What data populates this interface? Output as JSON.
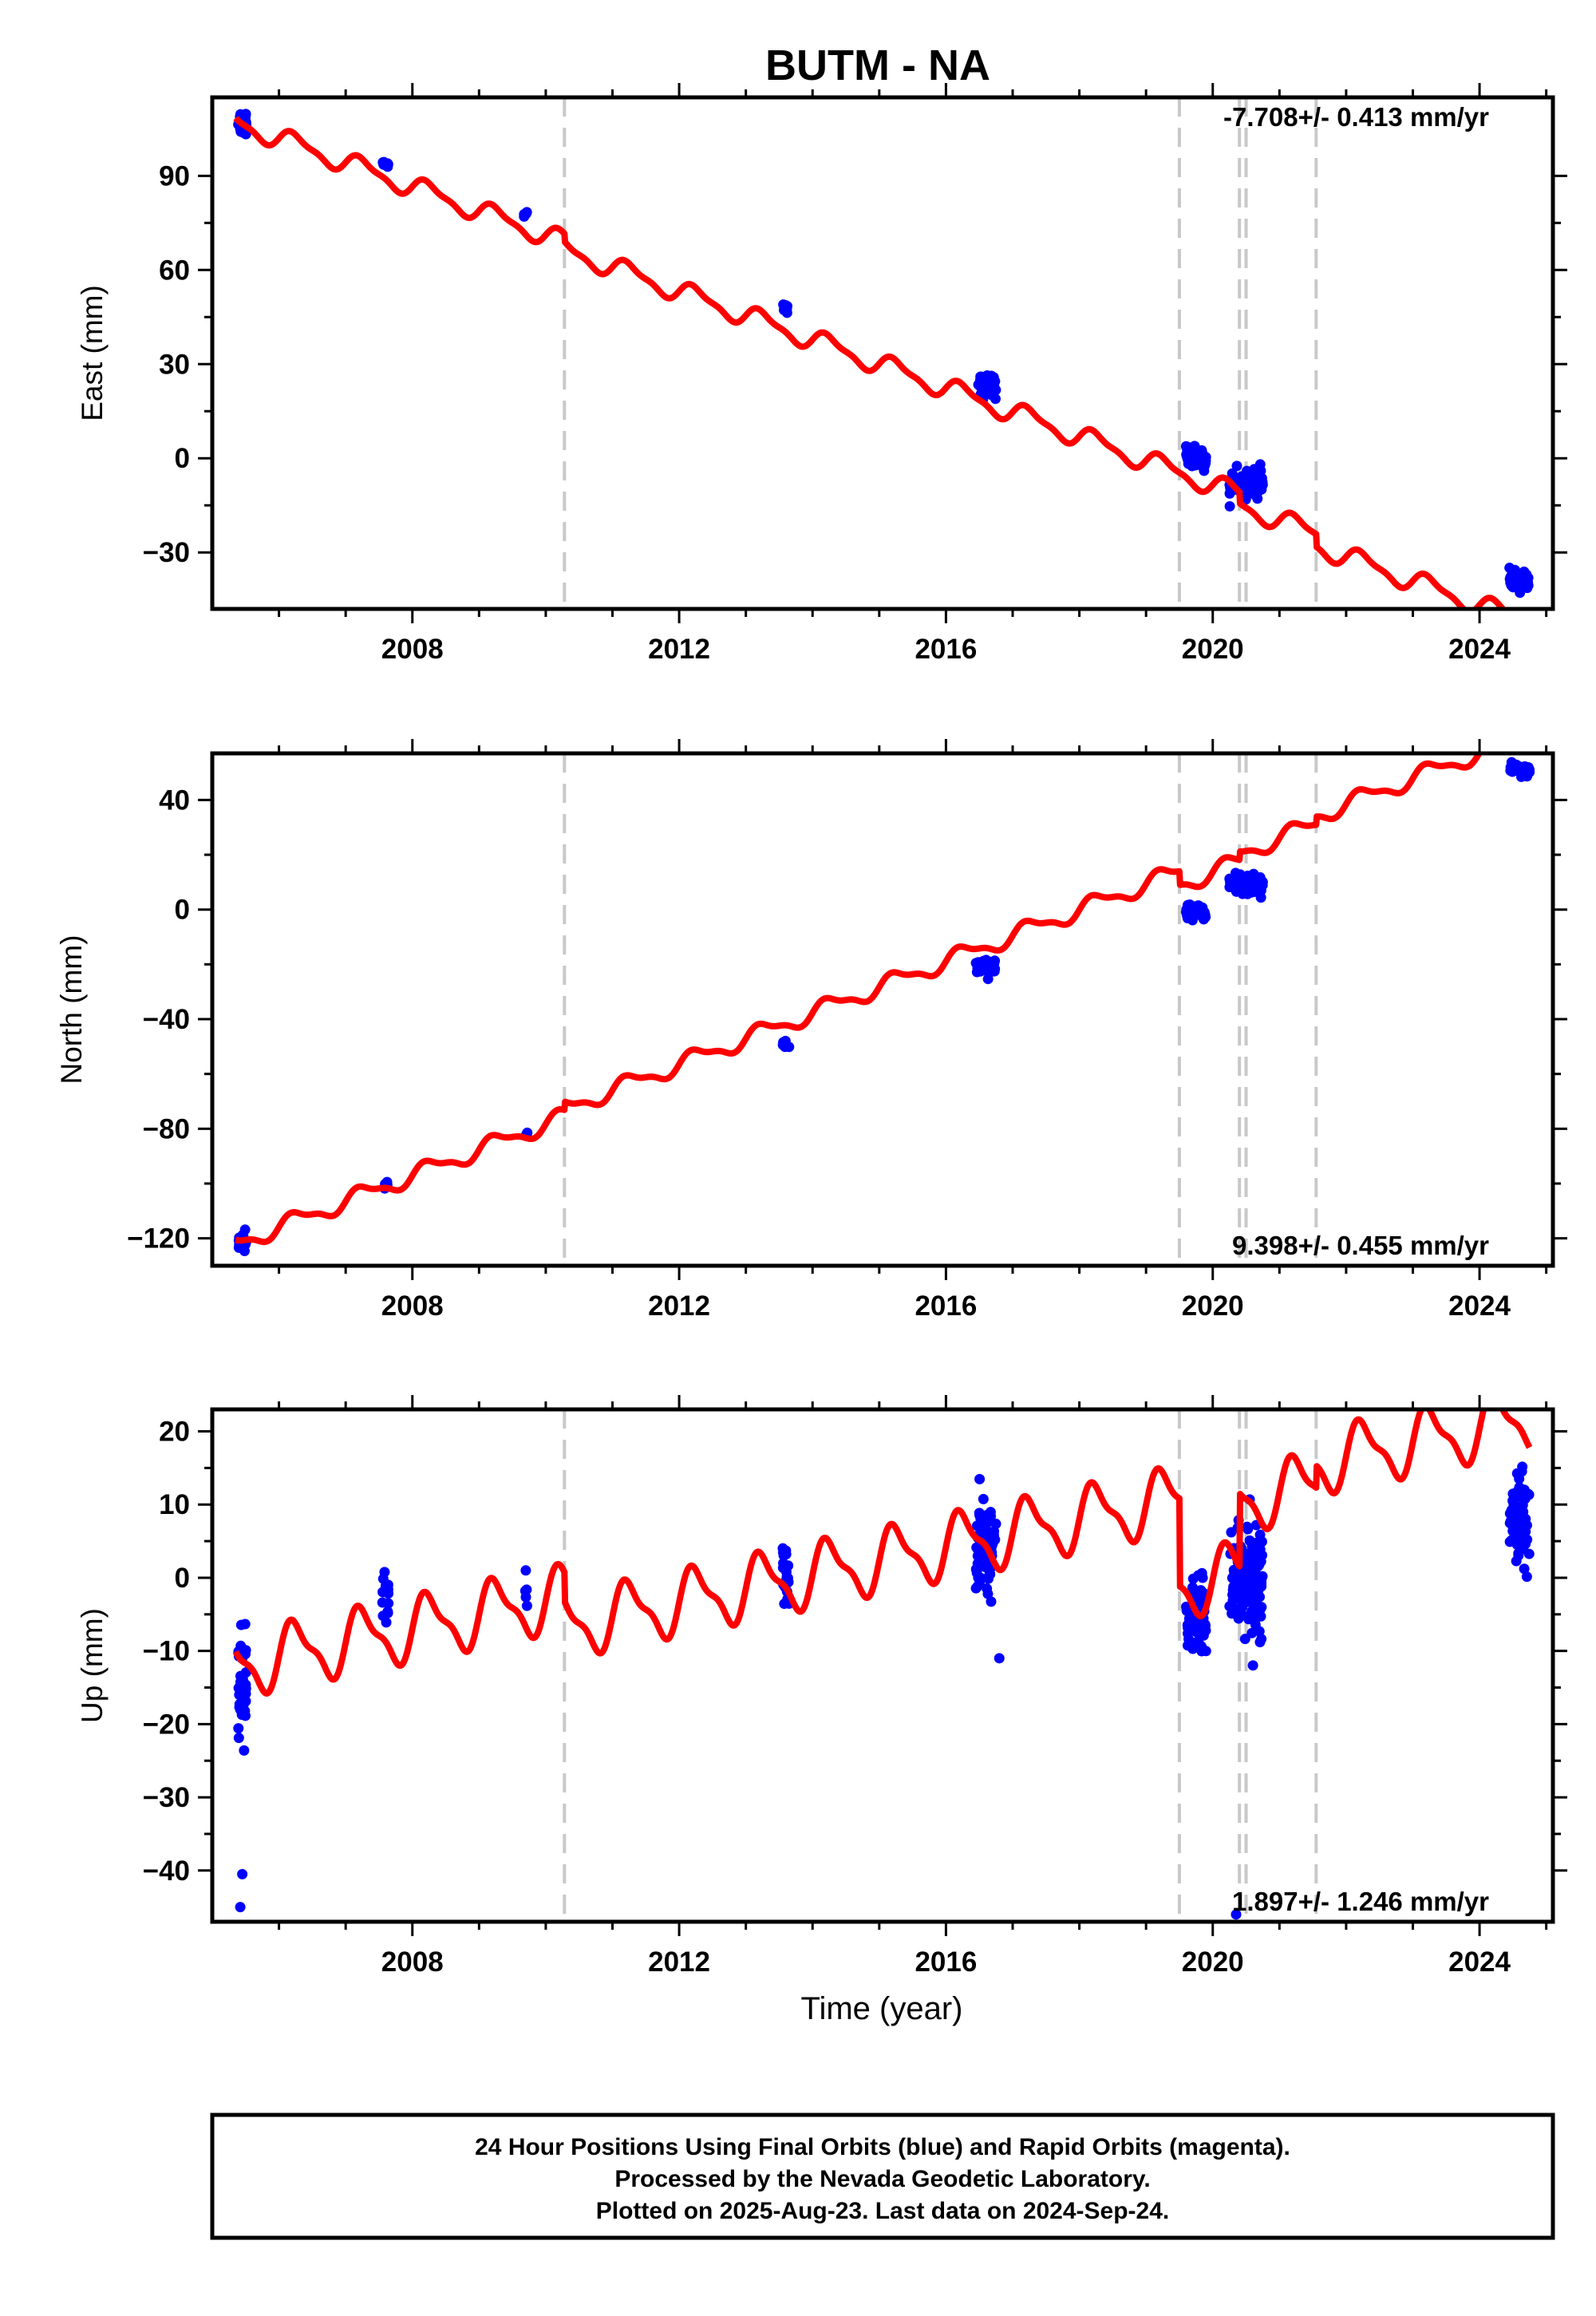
{
  "figure": {
    "title": "BUTM - NA",
    "footer": [
      "24 Hour Positions Using Final Orbits (blue) and Rapid Orbits (magenta).",
      "Processed by the Nevada Geodetic Laboratory.",
      "Plotted on 2025-Aug-23. Last data on 2024-Sep-24."
    ],
    "colors": {
      "data_points": "#0000ff",
      "model": "#ff0000",
      "steps": "#c8c8c8"
    }
  },
  "chart_data": [
    {
      "type": "scatter",
      "ylabel": "East (mm)",
      "xlabel": "",
      "xlim": [
        2005.0,
        2025.1
      ],
      "ylim": [
        -48,
        115
      ],
      "xticks": [
        2008,
        2012,
        2016,
        2020,
        2024
      ],
      "yticks": [
        -30,
        0,
        30,
        60,
        90
      ],
      "ytick_labels": [
        "−30",
        "0",
        "30",
        "60",
        "90"
      ],
      "rate_label": "-7.708+/- 0.413 mm/yr",
      "steps": [
        2010.28,
        2019.5,
        2020.4,
        2020.5,
        2021.55
      ],
      "model": {
        "t0": 2005.35,
        "t1": 2024.75,
        "intercept": 107,
        "rate": -7.708,
        "annual_amp": 3.0,
        "offsets": [
          [
            2010.28,
            -2.5
          ],
          [
            2019.5,
            0
          ],
          [
            2020.4,
            -3.5
          ],
          [
            2021.55,
            -4.0
          ]
        ]
      },
      "campaigns": [
        {
          "t": 2005.45,
          "w": 0.12,
          "y": 107,
          "n": 30,
          "spread": 3.5
        },
        {
          "t": 2007.6,
          "w": 0.1,
          "y": 94,
          "n": 8,
          "spread": 1.5
        },
        {
          "t": 2009.7,
          "w": 0.05,
          "y": 78,
          "n": 4,
          "spread": 1
        },
        {
          "t": 2013.6,
          "w": 0.1,
          "y": 48,
          "n": 8,
          "spread": 1.5
        },
        {
          "t": 2016.6,
          "w": 0.3,
          "y": 23,
          "n": 40,
          "spread": 3
        },
        {
          "t": 2019.75,
          "w": 0.3,
          "y": 0,
          "n": 50,
          "spread": 3
        },
        {
          "t": 2020.5,
          "w": 0.5,
          "y": -8,
          "n": 100,
          "spread": 3.5
        },
        {
          "t": 2024.6,
          "w": 0.3,
          "y": -39,
          "n": 50,
          "spread": 2.5
        }
      ]
    },
    {
      "type": "scatter",
      "ylabel": "North (mm)",
      "xlabel": "",
      "xlim": [
        2005.0,
        2025.1
      ],
      "ylim": [
        -130,
        57
      ],
      "xticks": [
        2008,
        2012,
        2016,
        2020,
        2024
      ],
      "yticks": [
        -120,
        -80,
        -40,
        0,
        40
      ],
      "ytick_labels": [
        "−120",
        "−80",
        "−40",
        "0",
        "40"
      ],
      "rate_label": "9.398+/- 0.455 mm/yr",
      "steps": [
        2010.28,
        2019.5,
        2020.4,
        2020.5,
        2021.55
      ],
      "model": {
        "t0": 2005.35,
        "t1": 2024.75,
        "intercept": -122,
        "rate": 9.398,
        "annual_amp": 3.0,
        "offsets": [
          [
            2010.28,
            3.0
          ],
          [
            2019.5,
            -5.0
          ],
          [
            2020.4,
            3.0
          ],
          [
            2021.55,
            3.0
          ]
        ]
      },
      "campaigns": [
        {
          "t": 2005.45,
          "w": 0.12,
          "y": -121,
          "n": 16,
          "spread": 2.5
        },
        {
          "t": 2007.6,
          "w": 0.08,
          "y": -101,
          "n": 6,
          "spread": 1.5
        },
        {
          "t": 2009.7,
          "w": 0.05,
          "y": -82,
          "n": 3,
          "spread": 1
        },
        {
          "t": 2013.6,
          "w": 0.1,
          "y": -49,
          "n": 8,
          "spread": 1.5
        },
        {
          "t": 2016.6,
          "w": 0.3,
          "y": -21,
          "n": 40,
          "spread": 2.5
        },
        {
          "t": 2019.75,
          "w": 0.3,
          "y": -1,
          "n": 50,
          "spread": 2
        },
        {
          "t": 2020.5,
          "w": 0.5,
          "y": 9,
          "n": 100,
          "spread": 3
        },
        {
          "t": 2024.6,
          "w": 0.3,
          "y": 51,
          "n": 50,
          "spread": 1.5
        }
      ]
    },
    {
      "type": "scatter",
      "ylabel": "Up (mm)",
      "xlabel": "Time (year)",
      "xlim": [
        2005.0,
        2025.1
      ],
      "ylim": [
        -47,
        23
      ],
      "xticks": [
        2008,
        2012,
        2016,
        2020,
        2024
      ],
      "yticks": [
        -40,
        -30,
        -20,
        -10,
        0,
        10,
        20
      ],
      "ytick_labels": [
        "−40",
        "−30",
        "−20",
        "−10",
        "0",
        "10",
        "20"
      ],
      "rate_label": "1.897+/- 1.246 mm/yr",
      "steps": [
        2010.28,
        2019.5,
        2020.4,
        2020.5,
        2021.55
      ],
      "model": {
        "t0": 2005.35,
        "t1": 2024.75,
        "intercept": -12,
        "rate": 1.897,
        "annual_amp": 4.0,
        "offsets": [
          [
            2010.28,
            -4.0
          ],
          [
            2019.5,
            -12.0
          ],
          [
            2020.4,
            10.0
          ],
          [
            2021.55,
            3.0
          ]
        ]
      },
      "campaigns": [
        {
          "t": 2005.45,
          "w": 0.12,
          "y": -15,
          "n": 45,
          "spread": 6
        },
        {
          "t": 2007.6,
          "w": 0.1,
          "y": -2,
          "n": 15,
          "spread": 4
        },
        {
          "t": 2009.7,
          "w": 0.05,
          "y": -2,
          "n": 5,
          "spread": 2
        },
        {
          "t": 2013.6,
          "w": 0.1,
          "y": 0,
          "n": 20,
          "spread": 4
        },
        {
          "t": 2016.6,
          "w": 0.3,
          "y": 4,
          "n": 80,
          "spread": 5
        },
        {
          "t": 2019.75,
          "w": 0.3,
          "y": -5,
          "n": 70,
          "spread": 4
        },
        {
          "t": 2020.5,
          "w": 0.5,
          "y": 0,
          "n": 140,
          "spread": 7
        },
        {
          "t": 2024.6,
          "w": 0.3,
          "y": 8,
          "n": 70,
          "spread": 5
        }
      ],
      "outliers": [
        [
          2005.42,
          -45
        ],
        [
          2005.45,
          -40.5
        ],
        [
          2020.35,
          -46
        ],
        [
          2016.8,
          -11
        ]
      ]
    }
  ]
}
